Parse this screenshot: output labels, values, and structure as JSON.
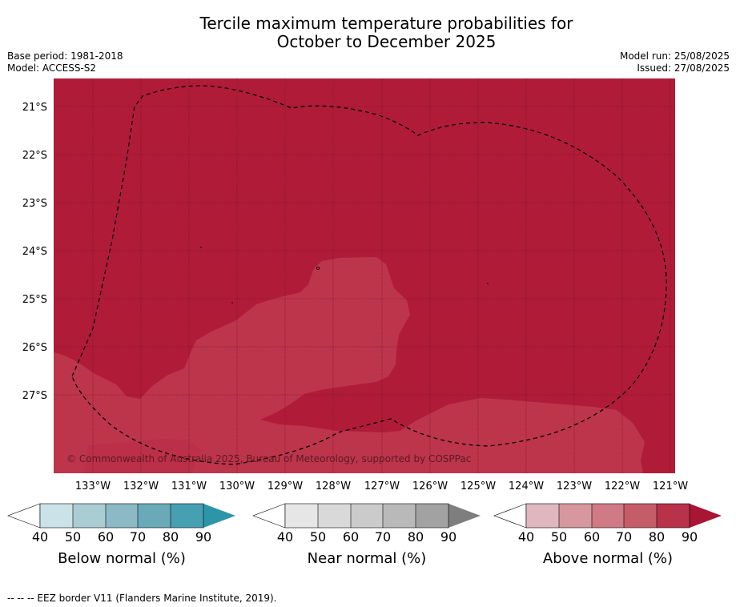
{
  "title_line1": "Tercile maximum temperature probabilities for",
  "title_line2": "October to December 2025",
  "base_period": "Base period: 1981-2018",
  "model": "Model: ACCESS-S2",
  "model_run": "Model run: 25/08/2025",
  "issued": "Issued: 27/08/2025",
  "copyright": "© Commonwealth of Australia 2025, Bureau of Meteorology, supported by COSPPac",
  "footnote": "-- -- -- EEZ border V11 (Flanders Marine Institute, 2019).",
  "longitude_labels": [
    "133°W",
    "132°W",
    "131°W",
    "130°W",
    "129°W",
    "128°W",
    "127°W",
    "126°W",
    "125°W",
    "124°W",
    "123°W",
    "122°W",
    "121°W"
  ],
  "latitude_labels": [
    "21°S",
    "22°S",
    "23°S",
    "24°S",
    "25°S",
    "26°S",
    "27°S"
  ],
  "colors": {
    "above_80_90": "#b01c38",
    "above_70_80": "#bd354b",
    "below": [
      "#cbe3e8",
      "#a9cdd3",
      "#8bbac6",
      "#6aa9b8",
      "#47a0b1",
      "#2c95a8"
    ],
    "near": [
      "#e6e6e6",
      "#d9d9d9",
      "#cbcbcb",
      "#b9b9b9",
      "#a2a2a2",
      "#7e7e7e"
    ],
    "above": [
      "#e0b7bf",
      "#d7979f",
      "#cf7a85",
      "#c55d69",
      "#b8324a",
      "#a81535"
    ]
  },
  "legends": [
    {
      "id": "below",
      "title": "Below normal (%)",
      "ticks": [
        "40",
        "50",
        "60",
        "70",
        "80",
        "90"
      ]
    },
    {
      "id": "near",
      "title": "Near normal (%)",
      "ticks": [
        "40",
        "50",
        "60",
        "70",
        "80",
        "90"
      ]
    },
    {
      "id": "above",
      "title": "Above normal (%)",
      "ticks": [
        "40",
        "50",
        "60",
        "70",
        "80",
        "90"
      ]
    }
  ]
}
